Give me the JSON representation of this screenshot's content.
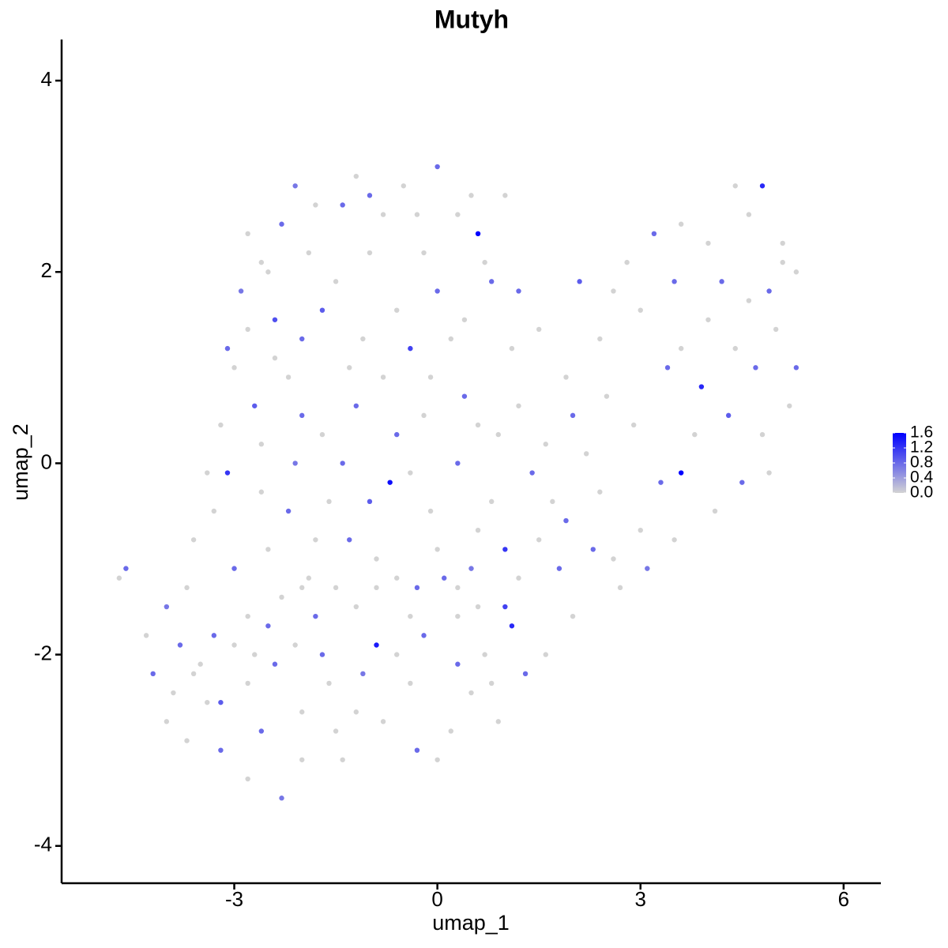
{
  "chart_data": {
    "type": "scatter",
    "title": "Mutyh",
    "x_label": "umap_1",
    "y_label": "umap_2",
    "xlim": [
      -5.55,
      6.55
    ],
    "ylim": [
      -4.39,
      4.43
    ],
    "xticks": [
      -3,
      0,
      3,
      6
    ],
    "yticks": [
      -4,
      -2,
      0,
      2,
      4
    ],
    "color_low": "#d3d3d3",
    "color_high": "#0000ff",
    "colorlim": [
      0,
      1.6
    ],
    "colorticks": [
      {
        "value": 0,
        "label": "0.0"
      },
      {
        "value": 0.4,
        "label": "0.4"
      },
      {
        "value": 0.8,
        "label": "0.8"
      },
      {
        "value": 1.2,
        "label": "1.2"
      },
      {
        "value": 1.6,
        "label": "1.6"
      }
    ],
    "legend": "right",
    "x": [
      -2.1,
      -1.2,
      -0.5,
      0,
      0.3,
      0.6,
      -1.8,
      -2.3,
      -2.6,
      -2.9,
      -2.4,
      -2.0,
      -1.5,
      -1.0,
      -0.6,
      0.0,
      0.4,
      0.8,
      1.1,
      -0.4,
      -3.0,
      -2.7,
      -3.2,
      -2.2,
      -1.7,
      -1.2,
      -0.8,
      -0.2,
      0.4,
      0.9,
      -3.4,
      -3.1,
      -2.6,
      -2.1,
      -1.6,
      -1.0,
      -0.7,
      -0.1,
      0.3,
      0.8,
      -3.6,
      -3.0,
      -2.5,
      -1.9,
      -1.3,
      -0.6,
      0.0,
      0.5,
      1.0,
      1.5,
      -4.7,
      -4.6,
      -4.3,
      -4.0,
      -3.7,
      -3.3,
      -2.8,
      -2.3,
      -1.8,
      -1.2,
      -4.2,
      -3.9,
      -3.5,
      -3.2,
      -2.8,
      -2.4,
      -2.0,
      -1.6,
      -1.1,
      -0.6,
      -3.7,
      -3.2,
      -2.8,
      -2.3,
      -2.0,
      -1.5,
      -1.4,
      -0.8,
      -0.3,
      0.0,
      -0.2,
      0.3,
      0.7,
      1.0,
      1.1,
      0.5,
      0.9,
      1.3,
      -0.9,
      0.2,
      1.6,
      1.9,
      2.1,
      2.4,
      2.0,
      1.7,
      2.3,
      2.7,
      3.0,
      3.3,
      2.8,
      3.2,
      3.6,
      4.0,
      4.4,
      4.6,
      4.8,
      5.1,
      5.3,
      4.9,
      3.0,
      3.5,
      4.0,
      4.4,
      4.7,
      5.0,
      5.3,
      5.2,
      4.8,
      4.3,
      3.6,
      3.9,
      4.1,
      3.5,
      3.1,
      2.6,
      2.9,
      3.6,
      4.5,
      4.9,
      -2.8,
      -2.5,
      -1.4,
      -0.8,
      -0.2,
      0.7,
      1.2,
      1.5,
      0.2,
      -1.9,
      -2.8,
      -3.1,
      -1.1,
      -0.1,
      0.6,
      1.2,
      1.4,
      0.6,
      -0.4,
      -1.4,
      -3.3,
      -2.2,
      -1.8,
      -0.9,
      -0.3,
      0.3,
      1.2,
      1.8,
      2.0,
      1.6,
      -4.0,
      -3.8,
      -3.4,
      -2.6,
      -2.1,
      -1.7,
      -1.2,
      -0.4,
      0.3,
      0.8,
      -3.0,
      -2.5,
      -2.0,
      -1.5,
      -0.9,
      -0.4,
      0.1,
      0.6,
      -2.7,
      -3.6,
      1.0,
      -1.0,
      -0.3,
      0.5,
      -1.7,
      -1.3,
      -2.4,
      -2.0,
      -2.6,
      -0.6,
      2.2,
      2.5,
      2.6,
      3.4,
      3.8,
      4.2,
      4.6,
      5.1,
      2.4,
      1.9
    ],
    "values": [
      2.9,
      3.0,
      2.9,
      3.1,
      2.6,
      2.4,
      2.7,
      2.5,
      2.1,
      1.8,
      1.5,
      1.3,
      1.9,
      2.2,
      1.6,
      1.8,
      1.5,
      1.9,
      1.2,
      1.2,
      1.0,
      0.6,
      0.4,
      0.9,
      0.3,
      0.6,
      0.9,
      0.5,
      0.7,
      0.3,
      -0.1,
      -0.1,
      -0.3,
      0.0,
      -0.4,
      -0.4,
      -0.2,
      -0.5,
      0.0,
      -0.4,
      -0.8,
      -1.1,
      -0.9,
      -1.2,
      -0.8,
      -1.2,
      -0.9,
      -1.1,
      -0.9,
      -0.8,
      -1.2,
      -1.1,
      -1.8,
      -1.5,
      -1.3,
      -1.8,
      -1.6,
      -1.4,
      -1.6,
      -1.5,
      -2.2,
      -2.4,
      -2.1,
      -2.5,
      -2.3,
      -2.1,
      -2.6,
      -2.3,
      -2.2,
      -2.0,
      -2.9,
      -3.0,
      -3.3,
      -3.5,
      -3.1,
      -2.8,
      -3.1,
      -2.7,
      -3.0,
      -3.1,
      -1.8,
      -1.6,
      -2.0,
      -1.5,
      -1.7,
      -2.4,
      -2.7,
      -2.2,
      -1.9,
      -2.8,
      0.2,
      0.9,
      1.9,
      1.3,
      0.5,
      -0.4,
      -0.9,
      -1.3,
      -0.7,
      -0.2,
      2.1,
      2.4,
      2.5,
      2.3,
      2.9,
      2.6,
      2.9,
      2.3,
      2.0,
      1.8,
      1.6,
      1.9,
      1.5,
      1.2,
      1.0,
      1.4,
      1.0,
      0.6,
      0.3,
      0.5,
      -0.1,
      0.8,
      -0.5,
      -0.8,
      -1.1,
      -1.0,
      0.4,
      1.2,
      -0.2,
      -0.1,
      2.4,
      2.0,
      2.7,
      2.6,
      2.2,
      2.1,
      1.8,
      1.4,
      1.3,
      2.2,
      1.4,
      1.2,
      1.3,
      0.9,
      0.4,
      0.6,
      -0.1,
      -0.7,
      -0.1,
      0.0,
      -0.5,
      -0.5,
      -0.8,
      -1.0,
      -1.3,
      -1.3,
      -1.2,
      -1.1,
      -1.6,
      -2.0,
      -2.7,
      -1.9,
      -2.5,
      -2.8,
      -1.9,
      -2.0,
      -2.6,
      -2.3,
      -2.1,
      -2.3,
      -1.9,
      -1.7,
      -1.3,
      -1.3,
      -1.3,
      -1.6,
      -1.2,
      -1.5,
      -2.0,
      -2.2,
      2.8,
      2.8,
      2.6,
      2.8,
      1.6,
      1.0,
      1.1,
      0.5,
      0.2,
      0.3,
      0.1,
      0.7,
      1.8,
      1.0,
      0.3,
      1.9,
      1.7,
      2.1,
      -0.3,
      -0.6
    ],
    "expression": [
      0.7,
      0,
      0,
      0.8,
      0,
      1.6,
      0,
      0.8,
      0,
      0.7,
      1.0,
      0.8,
      0,
      0,
      0,
      0.8,
      0,
      0.8,
      0,
      1.1,
      0,
      0.9,
      0,
      0,
      0,
      0.8,
      0,
      0,
      0.8,
      0,
      0,
      1.2,
      0,
      0.7,
      0,
      0.9,
      1.5,
      0,
      0.8,
      0,
      0,
      0.8,
      0,
      0,
      0.8,
      0,
      0,
      0.7,
      1.2,
      0,
      0,
      0.8,
      0,
      0.7,
      0,
      0.8,
      0,
      0,
      0.8,
      0,
      0.8,
      0,
      0,
      0.9,
      0,
      0.8,
      0,
      0,
      0.7,
      0,
      0,
      0.8,
      0,
      0.7,
      0,
      0,
      0,
      0,
      0.8,
      0,
      0.8,
      0,
      0,
      1.1,
      1.3,
      0,
      0,
      0.8,
      1.4,
      0,
      0,
      0,
      0.9,
      0,
      0.8,
      0,
      0.8,
      0,
      0,
      0.8,
      0,
      0.8,
      0,
      0,
      0,
      0,
      1.3,
      0,
      0,
      0.8,
      0,
      0.8,
      0,
      0,
      0.8,
      0,
      0.8,
      0,
      0,
      0.9,
      1.6,
      1.3,
      0,
      0,
      0.7,
      0,
      0,
      0,
      0.8,
      0,
      0,
      0,
      0.8,
      0,
      0,
      0,
      0.8,
      0,
      0,
      0,
      0,
      0.8,
      0,
      0,
      0,
      0,
      0.8,
      0,
      0,
      0.8,
      0,
      0.8,
      0,
      0,
      0.8,
      0,
      0,
      0.8,
      0,
      0,
      0,
      0.8,
      0,
      0.8,
      0,
      0.8,
      0,
      0,
      0.8,
      0,
      0,
      0.8,
      0,
      0,
      0,
      0,
      0.8,
      0,
      0,
      0,
      0,
      0.8,
      0,
      0,
      0.9,
      0,
      0,
      0.8,
      0,
      0.8,
      0,
      0,
      0,
      0.8,
      0,
      0.8,
      0,
      0,
      0,
      0.8
    ]
  }
}
